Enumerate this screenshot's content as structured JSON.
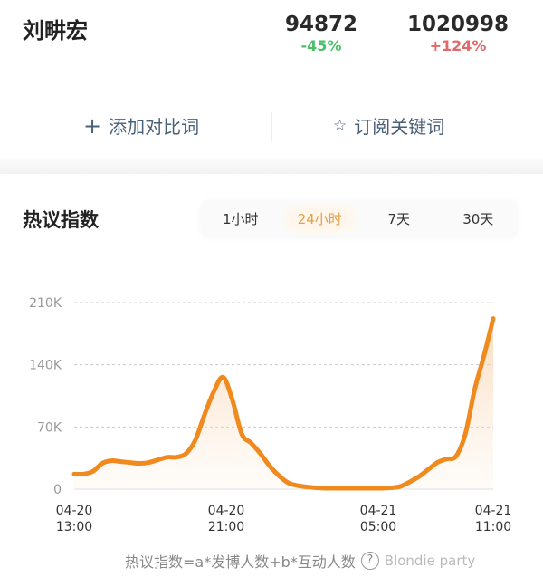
{
  "header": {
    "name": "刘畊宏",
    "stats": [
      {
        "value": "94872",
        "change": "-45%",
        "color": "#4cbf6a"
      },
      {
        "value": "1020998",
        "change": "+124%",
        "color": "#e06a6a"
      }
    ]
  },
  "actions": {
    "add_compare": "添加对比词",
    "add_icon": "plus-icon",
    "subscribe": "订阅关键词",
    "subscribe_icon": "star-icon"
  },
  "section": {
    "title": "热议指数",
    "tabs": [
      {
        "label": "1小时"
      },
      {
        "label": "24小时",
        "active": true
      },
      {
        "label": "7天"
      },
      {
        "label": "30天"
      }
    ]
  },
  "footer": {
    "formula": "热议指数=a*发博人数+b*互动人数",
    "help": "?",
    "watermark": "Blondie party"
  },
  "colors": {
    "line": "#f0891e",
    "accent": "#e0a04c"
  },
  "chart_data": {
    "type": "area",
    "title": "",
    "xlabel": "",
    "ylabel": "",
    "ylim": [
      0,
      210000
    ],
    "yticks": [
      "0",
      "70K",
      "140K",
      "210K"
    ],
    "ytick_values": [
      0,
      70000,
      140000,
      210000
    ],
    "xticks": [
      {
        "date": "04-20",
        "time": "13:00"
      },
      {
        "date": "04-20",
        "time": "21:00"
      },
      {
        "date": "04-21",
        "time": "05:00"
      },
      {
        "date": "04-21",
        "time": "11:00"
      }
    ],
    "x_range": [
      "04-20 13:00",
      "04-21 11:00"
    ],
    "x_step": "30 min",
    "grid": "dashed horizontal",
    "values": [
      17000,
      17000,
      20000,
      29000,
      32000,
      31000,
      30000,
      29000,
      30000,
      33000,
      36000,
      36000,
      40000,
      55000,
      84000,
      110000,
      126000,
      100000,
      62000,
      52000,
      40000,
      26000,
      15000,
      7000,
      4000,
      2500,
      1500,
      1000,
      1000,
      1000,
      1000,
      1000,
      1000,
      1000,
      1500,
      3000,
      8000,
      14000,
      22000,
      30000,
      34000,
      37000,
      62000,
      112000,
      150000,
      192000
    ]
  }
}
